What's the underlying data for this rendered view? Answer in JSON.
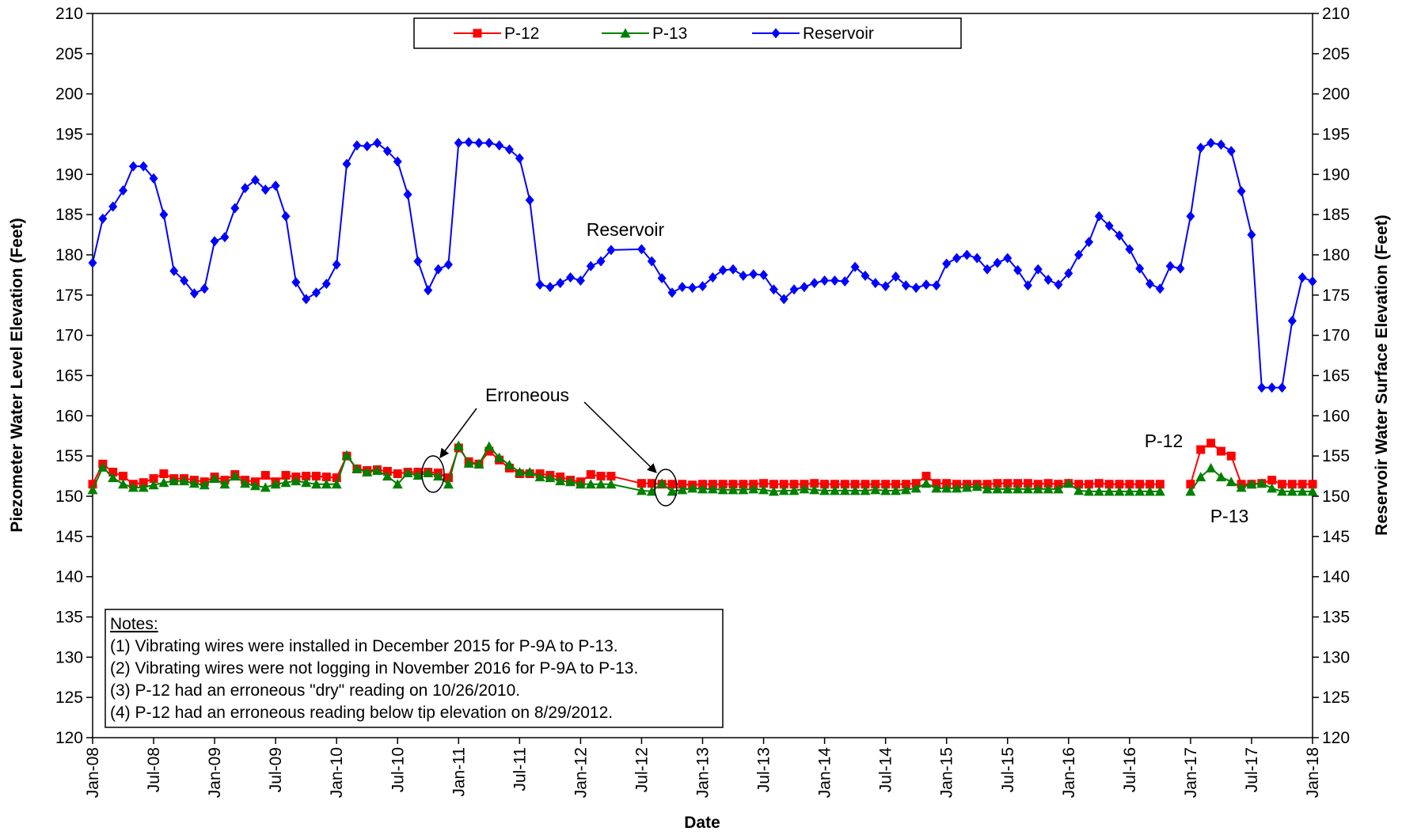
{
  "chart_data": {
    "type": "line",
    "xlabel": "Date",
    "ylabel": "Piezometer Water Level Elevation (Feet)",
    "y2label": "Reservoir Water Surface Elevation (Feet)",
    "xlim": [
      "2008-01",
      "2018-01"
    ],
    "xticks": [
      {
        "value": "2008-01",
        "label": "Jan-08"
      },
      {
        "value": "2008-07",
        "label": "Jul-08"
      },
      {
        "value": "2009-01",
        "label": "Jan-09"
      },
      {
        "value": "2009-07",
        "label": "Jul-09"
      },
      {
        "value": "2010-01",
        "label": "Jan-10"
      },
      {
        "value": "2010-07",
        "label": "Jul-10"
      },
      {
        "value": "2011-01",
        "label": "Jan-11"
      },
      {
        "value": "2011-07",
        "label": "Jul-11"
      },
      {
        "value": "2012-01",
        "label": "Jan-12"
      },
      {
        "value": "2012-07",
        "label": "Jul-12"
      },
      {
        "value": "2013-01",
        "label": "Jan-13"
      },
      {
        "value": "2013-07",
        "label": "Jul-13"
      },
      {
        "value": "2014-01",
        "label": "Jan-14"
      },
      {
        "value": "2014-07",
        "label": "Jul-14"
      },
      {
        "value": "2015-01",
        "label": "Jan-15"
      },
      {
        "value": "2015-07",
        "label": "Jul-15"
      },
      {
        "value": "2016-01",
        "label": "Jan-16"
      },
      {
        "value": "2016-07",
        "label": "Jul-16"
      },
      {
        "value": "2017-01",
        "label": "Jan-17"
      },
      {
        "value": "2017-07",
        "label": "Jul-17"
      },
      {
        "value": "2018-01",
        "label": "Jan-18"
      }
    ],
    "ylim": [
      120,
      210
    ],
    "yticks": [
      120,
      125,
      130,
      135,
      140,
      145,
      150,
      155,
      160,
      165,
      170,
      175,
      180,
      185,
      190,
      195,
      200,
      205,
      210
    ],
    "y2lim": [
      120,
      210
    ],
    "y2ticks": [
      120,
      125,
      130,
      135,
      140,
      145,
      150,
      155,
      160,
      165,
      170,
      175,
      180,
      185,
      190,
      195,
      200,
      205,
      210
    ],
    "grid": false,
    "legend": "top",
    "x": [
      "2008-01",
      "2008-02",
      "2008-03",
      "2008-04",
      "2008-05",
      "2008-06",
      "2008-07",
      "2008-08",
      "2008-09",
      "2008-10",
      "2008-11",
      "2008-12",
      "2009-01",
      "2009-02",
      "2009-03",
      "2009-04",
      "2009-05",
      "2009-06",
      "2009-07",
      "2009-08",
      "2009-09",
      "2009-10",
      "2009-11",
      "2009-12",
      "2010-01",
      "2010-02",
      "2010-03",
      "2010-04",
      "2010-05",
      "2010-06",
      "2010-07",
      "2010-08",
      "2010-09",
      "2010-10",
      "2010-11",
      "2010-12",
      "2011-01",
      "2011-02",
      "2011-03",
      "2011-04",
      "2011-05",
      "2011-06",
      "2011-07",
      "2011-08",
      "2011-09",
      "2011-10",
      "2011-11",
      "2011-12",
      "2012-01",
      "2012-02",
      "2012-03",
      "2012-04",
      "2012-07",
      "2012-08",
      "2012-09",
      "2012-10",
      "2012-11",
      "2012-12",
      "2013-01",
      "2013-02",
      "2013-03",
      "2013-04",
      "2013-05",
      "2013-06",
      "2013-07",
      "2013-08",
      "2013-09",
      "2013-10",
      "2013-11",
      "2013-12",
      "2014-01",
      "2014-02",
      "2014-03",
      "2014-04",
      "2014-05",
      "2014-06",
      "2014-07",
      "2014-08",
      "2014-09",
      "2014-10",
      "2014-11",
      "2014-12",
      "2015-01",
      "2015-02",
      "2015-03",
      "2015-04",
      "2015-05",
      "2015-06",
      "2015-07",
      "2015-08",
      "2015-09",
      "2015-10",
      "2015-11",
      "2015-12",
      "2016-01",
      "2016-02",
      "2016-03",
      "2016-04",
      "2016-05",
      "2016-06",
      "2016-07",
      "2016-08",
      "2016-09",
      "2016-10",
      "2016-11",
      "2016-12",
      "2017-01",
      "2017-02",
      "2017-03",
      "2017-04",
      "2017-05",
      "2017-06",
      "2017-07",
      "2017-08",
      "2017-09",
      "2017-10",
      "2017-11",
      "2017-12",
      "2018-01"
    ],
    "series": [
      {
        "name": "P-12",
        "color": "#ff0000",
        "marker": "square",
        "axis": "y",
        "values": [
          151.5,
          154,
          153,
          152.5,
          151.5,
          151.7,
          152.2,
          152.8,
          152.2,
          152.2,
          152,
          151.8,
          152.4,
          152,
          152.7,
          152,
          151.8,
          152.6,
          151.8,
          152.6,
          152.4,
          152.5,
          152.5,
          152.4,
          152.3,
          155,
          153.4,
          153.2,
          153.3,
          153.1,
          152.8,
          153,
          153,
          153,
          152.9,
          152.3,
          156,
          154.3,
          154,
          155.6,
          154.5,
          153.5,
          152.8,
          152.8,
          152.8,
          152.6,
          152.4,
          152,
          151.8,
          152.7,
          152.5,
          152.5,
          151.6,
          151.6,
          151.5,
          151.5,
          151.5,
          151.4,
          151.5,
          151.5,
          151.5,
          151.5,
          151.5,
          151.5,
          151.6,
          151.5,
          151.5,
          151.5,
          151.5,
          151.6,
          151.5,
          151.5,
          151.5,
          151.5,
          151.5,
          151.5,
          151.5,
          151.5,
          151.5,
          151.6,
          152.5,
          151.6,
          151.6,
          151.5,
          151.5,
          151.5,
          151.5,
          151.6,
          151.6,
          151.6,
          151.6,
          151.5,
          151.6,
          151.5,
          151.6,
          151.5,
          151.5,
          151.6,
          151.5,
          151.5,
          151.5,
          151.5,
          151.5,
          151.5,
          null,
          null,
          151.5,
          155.8,
          156.6,
          155.6,
          155,
          151.5,
          151.5,
          151.6,
          152,
          151.5,
          151.5,
          151.5,
          151.5
        ]
      },
      {
        "name": "P-13",
        "color": "#008000",
        "marker": "triangle",
        "axis": "y",
        "values": [
          150.8,
          153.6,
          152.3,
          151.5,
          151.1,
          151.1,
          151.4,
          151.7,
          151.9,
          151.9,
          151.6,
          151.4,
          152.2,
          151.5,
          152.5,
          151.6,
          151.3,
          151.1,
          151.5,
          151.7,
          151.9,
          151.7,
          151.5,
          151.5,
          151.5,
          155.1,
          153.4,
          153,
          153.2,
          152.5,
          151.5,
          152.9,
          152.6,
          152.9,
          152.5,
          151.5,
          156.3,
          154.1,
          154,
          156.2,
          154.8,
          153.9,
          153,
          153,
          152.4,
          152.3,
          151.9,
          151.8,
          151.5,
          151.5,
          151.5,
          151.5,
          150.7,
          150.6,
          151.6,
          150.6,
          150.8,
          151,
          150.9,
          150.9,
          150.8,
          150.8,
          150.8,
          150.9,
          150.8,
          150.6,
          150.7,
          150.7,
          150.9,
          150.8,
          150.7,
          150.7,
          150.7,
          150.7,
          150.7,
          150.8,
          150.7,
          150.7,
          150.8,
          151,
          151.6,
          151,
          151,
          151,
          151.1,
          151.2,
          150.9,
          150.9,
          150.9,
          150.9,
          150.9,
          150.9,
          150.9,
          150.9,
          151.6,
          150.7,
          150.6,
          150.6,
          150.6,
          150.6,
          150.6,
          150.6,
          150.6,
          150.6,
          null,
          null,
          150.6,
          152.4,
          153.5,
          152.4,
          151.8,
          151.1,
          151.5,
          151.6,
          151,
          150.6,
          150.6,
          150.6,
          150.6
        ]
      },
      {
        "name": "Reservoir",
        "color": "#0000ff",
        "marker": "diamond",
        "axis": "y2",
        "values": [
          179,
          184.5,
          186,
          188,
          191,
          191,
          189.5,
          185,
          178,
          176.8,
          175.2,
          175.8,
          181.7,
          182.2,
          185.8,
          188.3,
          189.3,
          188.1,
          188.6,
          184.8,
          176.6,
          174.5,
          175.3,
          176.4,
          178.8,
          191.3,
          193.6,
          193.5,
          193.9,
          192.9,
          191.6,
          187.5,
          179.2,
          175.6,
          178.2,
          178.8,
          193.9,
          194,
          193.9,
          193.9,
          193.6,
          193.1,
          192,
          186.8,
          176.3,
          176,
          176.5,
          177.2,
          176.8,
          178.6,
          179.2,
          180.6,
          180.7,
          179.2,
          177.1,
          175.3,
          176,
          175.9,
          176.1,
          177.2,
          178.1,
          178.2,
          177.4,
          177.6,
          177.5,
          175.7,
          174.5,
          175.7,
          176,
          176.5,
          176.8,
          176.8,
          176.7,
          178.5,
          177.4,
          176.5,
          176.1,
          177.3,
          176.2,
          175.9,
          176.3,
          176.2,
          178.9,
          179.6,
          180,
          179.6,
          178.2,
          179,
          179.6,
          178.1,
          176.2,
          178.2,
          176.9,
          176.3,
          177.7,
          180,
          181.6,
          184.8,
          183.6,
          182.4,
          180.7,
          178.3,
          176.4,
          175.8,
          178.6,
          178.3,
          184.8,
          193.3,
          193.9,
          193.7,
          192.9,
          187.9,
          182.5,
          163.5,
          163.5,
          163.5,
          171.8,
          177.2,
          176.7
        ]
      }
    ],
    "annotations": [
      "Reservoir",
      "Erroneous",
      "P-12",
      "P-13"
    ],
    "notes_title": "Notes:",
    "notes": [
      "(1) Vibrating wires were installed in December 2015 for P-9A to P-13.",
      "(2) Vibrating wires were not logging in November 2016 for P-9A to P-13.",
      "(3) P-12 had an erroneous \"dry\" reading on 10/26/2010.",
      "(4) P-12 had an erroneous reading below tip elevation on 8/29/2012."
    ]
  }
}
